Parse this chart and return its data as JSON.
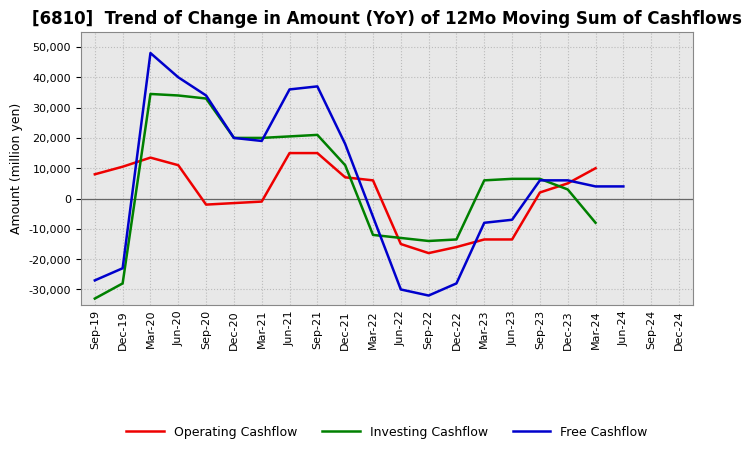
{
  "title": "[6810]  Trend of Change in Amount (YoY) of 12Mo Moving Sum of Cashflows",
  "ylabel": "Amount (million yen)",
  "labels": [
    "Sep-19",
    "Dec-19",
    "Mar-20",
    "Jun-20",
    "Sep-20",
    "Dec-20",
    "Mar-21",
    "Jun-21",
    "Sep-21",
    "Dec-21",
    "Mar-22",
    "Jun-22",
    "Sep-22",
    "Dec-22",
    "Mar-23",
    "Jun-23",
    "Sep-23",
    "Dec-23",
    "Mar-24",
    "Jun-24",
    "Sep-24",
    "Dec-24"
  ],
  "operating": [
    8000,
    10500,
    13500,
    11000,
    -2000,
    -1500,
    -1000,
    15000,
    15000,
    7000,
    6000,
    -15000,
    -18000,
    -16000,
    -13500,
    -13500,
    2000,
    5000,
    10000,
    null,
    null,
    null
  ],
  "investing": [
    -33000,
    -28000,
    34500,
    34000,
    33000,
    20000,
    20000,
    20500,
    21000,
    11000,
    -12000,
    -13000,
    -14000,
    -13500,
    6000,
    6500,
    6500,
    3000,
    -8000,
    null,
    null,
    null
  ],
  "free": [
    -27000,
    -23000,
    48000,
    40000,
    34000,
    20000,
    19000,
    36000,
    37000,
    18000,
    -6000,
    -30000,
    -32000,
    -28000,
    -8000,
    -7000,
    6000,
    6000,
    4000,
    4000,
    null,
    null
  ],
  "operating_color": "#ee0000",
  "investing_color": "#008000",
  "free_color": "#0000cc",
  "ylim": [
    -35000,
    55000
  ],
  "yticks": [
    -30000,
    -20000,
    -10000,
    0,
    10000,
    20000,
    30000,
    40000,
    50000
  ],
  "background_color": "#ffffff",
  "plot_bg_color": "#e8e8e8",
  "grid_color": "#bbbbbb",
  "title_fontsize": 12,
  "axis_fontsize": 9,
  "tick_fontsize": 8,
  "legend_fontsize": 9
}
